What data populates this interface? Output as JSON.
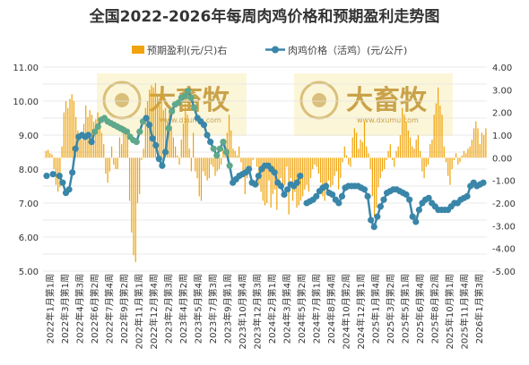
{
  "chart_data": {
    "type": "bar+line",
    "title": "全国2022-2026年每周肉鸡价格和预期盈利走势图",
    "legend": [
      {
        "name": "预期盈利(元/只)右",
        "color": "#F0A30A",
        "kind": "bar"
      },
      {
        "name": "肉鸡价格（活鸡）(元/公斤)",
        "color": "#3A86A8",
        "kind": "line"
      }
    ],
    "watermark": {
      "brand": "大畜牧",
      "url": "www.dxumu.com"
    },
    "left_axis": {
      "ticks": [
        "11.00",
        "10.00",
        "9.00",
        "8.00",
        "7.00",
        "6.00",
        "5.00"
      ],
      "ylim": [
        5,
        11
      ]
    },
    "right_axis": {
      "ticks": [
        "4.00",
        "3.00",
        "2.00",
        "1.00",
        "0.00",
        "-1.00",
        "-2.00",
        "-3.00",
        "-4.00",
        "-5.00"
      ],
      "ylim": [
        -5,
        4
      ]
    },
    "x_ticks": [
      "2022年1月第1周",
      "2022年3月第1周",
      "2022年4月第3周",
      "2022年6月第2周",
      "2022年7月第4周",
      "2022年9月第2周",
      "2022年11月第1周",
      "2022年12月第4周",
      "2023年2月第3周",
      "2023年4月第2周",
      "2023年5月第4周",
      "2023年7月第3周",
      "2023年9月第1周",
      "2023年10月第4周",
      "2023年12月第3周",
      "2024年2月第1周",
      "2024年3月第4周",
      "2024年5月第2周",
      "2024年7月第1周",
      "2024年8月第4周",
      "2024年10月第2周",
      "2024年12月第1周",
      "2025年1月第4周",
      "2025年3月第2周",
      "2025年5月第1周",
      "2025年6月第4周",
      "2025年8月第2周",
      "2025年10月第1周",
      "2025年11月第4周",
      "2026年1月第3周"
    ],
    "price_series": {
      "name": "肉鸡价格（活鸡）(元/公斤)",
      "points": [
        [
          0,
          7.8
        ],
        [
          2,
          7.85
        ],
        [
          4,
          7.8
        ],
        [
          5,
          7.6
        ],
        [
          6,
          7.3
        ],
        [
          7,
          7.4
        ],
        [
          8,
          7.9
        ],
        [
          9,
          8.6
        ],
        [
          10,
          8.95
        ],
        [
          11,
          9.0
        ],
        [
          12,
          8.95
        ],
        [
          13,
          9.0
        ],
        [
          14,
          8.8
        ],
        [
          15,
          9.1
        ],
        [
          16,
          9.25
        ],
        [
          17,
          9.45
        ],
        [
          18,
          9.5
        ],
        [
          19,
          9.4
        ],
        [
          20,
          9.35
        ],
        [
          21,
          9.3
        ],
        [
          22,
          9.25
        ],
        [
          23,
          9.2
        ],
        [
          24,
          9.15
        ],
        [
          25,
          9.1
        ],
        [
          26,
          8.95
        ],
        [
          27,
          8.85
        ],
        [
          28,
          8.8
        ],
        [
          29,
          9.1
        ],
        [
          30,
          9.4
        ],
        [
          31,
          9.5
        ],
        [
          32,
          9.3
        ],
        [
          33,
          8.9
        ],
        [
          34,
          8.7
        ],
        [
          35,
          8.3
        ],
        [
          36,
          8.1
        ],
        [
          37,
          8.5
        ],
        [
          38,
          9.2
        ],
        [
          39,
          9.7
        ],
        [
          40,
          9.9
        ],
        [
          41,
          9.95
        ],
        [
          42,
          10.1
        ],
        [
          43,
          10.15
        ],
        [
          44,
          10.3
        ],
        [
          45,
          10.1
        ],
        [
          46,
          9.8
        ],
        [
          47,
          9.5
        ],
        [
          48,
          9.4
        ],
        [
          49,
          9.3
        ],
        [
          50,
          9.0
        ],
        [
          51,
          8.8
        ],
        [
          52,
          8.6
        ],
        [
          53,
          8.4
        ],
        [
          54,
          8.6
        ],
        [
          55,
          8.8
        ],
        [
          56,
          8.5
        ],
        [
          57,
          8.1
        ],
        [
          58,
          7.6
        ],
        [
          59,
          7.7
        ],
        [
          60,
          7.8
        ],
        [
          61,
          7.85
        ],
        [
          62,
          7.9
        ],
        [
          63,
          8.0
        ],
        [
          64,
          7.6
        ],
        [
          65,
          7.55
        ],
        [
          66,
          7.8
        ],
        [
          67,
          8.0
        ],
        [
          68,
          8.1
        ],
        [
          69,
          8.1
        ],
        [
          70,
          8.0
        ],
        [
          71,
          7.9
        ],
        [
          72,
          7.6
        ],
        [
          73,
          7.5
        ],
        [
          74,
          7.25
        ],
        [
          75,
          7.4
        ],
        [
          76,
          7.55
        ],
        [
          77,
          7.5
        ],
        [
          78,
          7.6
        ],
        [
          79,
          7.8
        ],
        [
          81,
          7.0
        ],
        [
          82,
          7.05
        ],
        [
          83,
          7.1
        ],
        [
          84,
          7.2
        ],
        [
          85,
          7.35
        ],
        [
          86,
          7.45
        ],
        [
          87,
          7.5
        ],
        [
          88,
          7.3
        ],
        [
          89,
          7.25
        ],
        [
          90,
          7.1
        ],
        [
          91,
          7.0
        ],
        [
          92,
          7.2
        ],
        [
          93,
          7.45
        ],
        [
          94,
          7.5
        ],
        [
          95,
          7.5
        ],
        [
          96,
          7.5
        ],
        [
          97,
          7.5
        ],
        [
          98,
          7.45
        ],
        [
          99,
          7.4
        ],
        [
          100,
          7.2
        ],
        [
          101,
          6.5
        ],
        [
          102,
          6.3
        ],
        [
          103,
          6.6
        ],
        [
          104,
          6.9
        ],
        [
          105,
          7.1
        ],
        [
          106,
          7.3
        ],
        [
          107,
          7.35
        ],
        [
          108,
          7.4
        ],
        [
          109,
          7.4
        ],
        [
          110,
          7.35
        ],
        [
          111,
          7.3
        ],
        [
          112,
          7.25
        ],
        [
          113,
          7.1
        ],
        [
          114,
          6.6
        ],
        [
          115,
          6.45
        ],
        [
          116,
          6.8
        ],
        [
          117,
          7.0
        ],
        [
          118,
          7.1
        ],
        [
          119,
          7.15
        ],
        [
          120,
          7.0
        ],
        [
          121,
          6.9
        ],
        [
          122,
          6.8
        ],
        [
          123,
          6.8
        ],
        [
          124,
          6.8
        ],
        [
          125,
          6.8
        ],
        [
          126,
          6.9
        ],
        [
          127,
          7.0
        ],
        [
          128,
          7.0
        ],
        [
          129,
          7.1
        ],
        [
          130,
          7.15
        ],
        [
          131,
          7.2
        ],
        [
          132,
          7.5
        ],
        [
          133,
          7.6
        ],
        [
          134,
          7.5
        ],
        [
          135,
          7.55
        ],
        [
          136,
          7.6
        ]
      ]
    },
    "highlight_segments": [
      [
        15,
        30
      ],
      [
        38,
        46
      ],
      [
        52,
        57
      ]
    ],
    "profit_series": {
      "name": "预期盈利(元/只)右",
      "values": [
        0,
        0.3,
        0.35,
        0.2,
        0.15,
        -0.5,
        -1.2,
        -1.5,
        -1.3,
        0.5,
        2.0,
        2.5,
        2.2,
        2.6,
        2.8,
        2.5,
        1.8,
        1.2,
        1.0,
        0.8,
        1.5,
        2.3,
        1.8,
        2.1,
        1.9,
        1.6,
        1.7,
        2.0,
        1.5,
        1.1,
        0.6,
        -0.7,
        -1.1,
        -0.6,
        0.5,
        -0.3,
        -0.5,
        -0.5,
        0.9,
        0.6,
        1.4,
        1.2,
        0.9,
        -1.9,
        -3.3,
        -4.3,
        -4.6,
        -2.0,
        -1.6,
        -0.1,
        0.4,
        2.2,
        2.5,
        3.0,
        3.2,
        3.1,
        3.3,
        2.7,
        2.3,
        3.0,
        2.1,
        2.2,
        1.6,
        2.0,
        1.4,
        0.9,
        0.5,
        0.1,
        -0.3,
        0.8,
        1.5,
        2.4,
        1.9,
        0.4,
        -0.6,
        1.1,
        -0.6,
        -0.9,
        -1.7,
        -1.9,
        -0.6,
        -0.8,
        -1.0,
        -0.9,
        -0.3,
        -0.4,
        -0.8,
        -0.6,
        -0.5,
        -0.3,
        0.4,
        0.7,
        1.1,
        1.9,
        1.2,
        0.4,
        0.3,
        0.1,
        0.5,
        -0.2,
        -0.8,
        -1.6,
        -0.9,
        -0.7,
        -0.5,
        -0.1,
        0,
        -0.4,
        -1.2,
        -1.5,
        -1.9,
        -2.1,
        -2.0,
        -1.0,
        -2.2,
        -1.6,
        -1.4,
        -2.3,
        -1.1,
        -0.9,
        -1.2,
        -1.2,
        -0.4,
        -2.5,
        -0.9,
        -1.9,
        -1.5,
        -2.2,
        -2.1,
        -1.9,
        -1.7,
        -1.4,
        -1.2,
        -1.5,
        -0.9,
        -0.5,
        -0.3,
        -0.4,
        -0.7,
        -1.1,
        -1.7,
        -1.9,
        -1.5,
        -1.0,
        -1.3,
        -1.2,
        -0.8,
        -0.6,
        -1.4,
        -0.9,
        -0.2,
        0.5,
        0.1,
        -0.3,
        -0.4,
        0.9,
        1.3,
        1.1,
        0.4,
        0.8,
        0.7,
        1.6,
        0.5,
        0.2,
        -0.5,
        -1.7,
        -2.6,
        -2.2,
        -1.3,
        -0.9,
        -0.6,
        -0.5,
        -0.1,
        0.3,
        0.6,
        -0.1,
        -0.4,
        0.3,
        0.5,
        1.0,
        2.2,
        1.9,
        1.6,
        1.2,
        0.9,
        0.5,
        0.4,
        0.8,
        1.0,
        0.3,
        -0.6,
        -0.9,
        -0.4,
        -0.3,
        0.6,
        0.8,
        1.9,
        2.4,
        3.1,
        2.3,
        1.9,
        0.5,
        -0.2,
        -0.8,
        -1.2,
        -0.5,
        -0.1,
        0.2,
        -0.3,
        -0.2,
        0.1,
        0.3,
        0.2,
        0.4,
        0.5,
        0.8,
        1.3,
        1.6,
        1.3,
        0.6,
        1.1,
        1.0,
        1.3
      ]
    }
  }
}
